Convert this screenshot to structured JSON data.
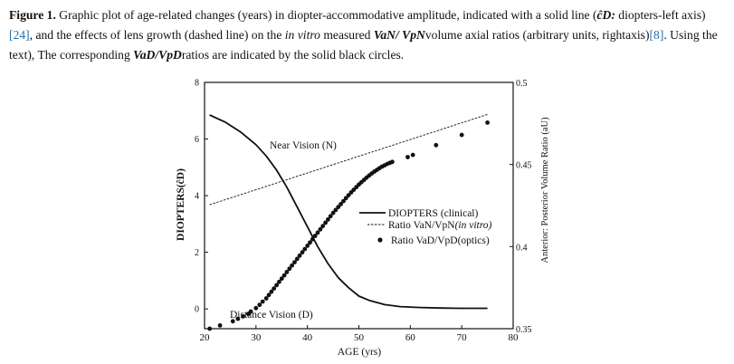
{
  "caption": {
    "label": "Figure 1.",
    "part1": " Graphic plot of age-related changes (years) in diopter-accommodative amplitude, indicated with a solid line (",
    "d_symbol": "ĉD:",
    "part2": " diopters-left axis)",
    "ref1": "[24]",
    "part3": ", and the effects of lens growth (dashed line) on the ",
    "in_vitro": "in vitro",
    "part4": " measured ",
    "ratio1": "VaN/ VpN",
    "part5": "volume axial ratios (arbitrary units, rightaxis)",
    "ref2": "[8]",
    "part6": ". Using the text), The corresponding ",
    "ratio2": "VaD/VpD",
    "part7": "ratios are indicated by the solid black circles."
  },
  "chart_data": {
    "type": "line",
    "xlabel": "AGE (yrs)",
    "ylabel_left": "DIOPTERS(ĉD)",
    "ylabel_right": "Anterior: Posterior Volume Ratio (aU)",
    "xlim": [
      20,
      80
    ],
    "ylim_left": [
      -0.7,
      8
    ],
    "ylim_right": [
      0.35,
      0.5
    ],
    "x_ticks": [
      "20",
      "30",
      "40",
      "50",
      "60",
      "70",
      "80"
    ],
    "y_left_ticks": [
      "0",
      "2",
      "4",
      "6",
      "8"
    ],
    "y_right_ticks": [
      "0.35",
      "0.4",
      "0.45",
      "0.5"
    ],
    "annotations": {
      "near": "Near Vision (N)",
      "distance": "Distance Vision (D)"
    },
    "legend": {
      "position": "center-right",
      "entries": [
        {
          "label": "DIOPTERS (clinical)",
          "style": "solid"
        },
        {
          "label_a": "Ratio VaN/VpN",
          "label_b": "(in vitro)",
          "style": "dashed"
        },
        {
          "label": "Ratio VaD/VpD(optics)",
          "style": "dot"
        }
      ]
    },
    "series": [
      {
        "key": "diopters",
        "axis": "left",
        "style": "solid",
        "x": [
          21,
          24,
          27,
          30,
          32,
          34,
          36,
          38,
          40,
          42,
          44,
          46,
          48,
          50,
          52,
          55,
          58,
          62,
          66,
          70,
          75
        ],
        "y": [
          6.85,
          6.6,
          6.25,
          5.8,
          5.4,
          4.9,
          4.3,
          3.6,
          2.9,
          2.2,
          1.6,
          1.1,
          0.75,
          0.45,
          0.3,
          0.15,
          0.08,
          0.05,
          0.03,
          0.02,
          0.02
        ]
      },
      {
        "key": "ratio_n",
        "axis": "right",
        "style": "dashed",
        "x": [
          21,
          75
        ],
        "y": [
          0.4255,
          0.4805
        ]
      },
      {
        "key": "ratio_d",
        "axis": "right",
        "style": "dot",
        "x": [
          21,
          23,
          25.5,
          26.5,
          27.5,
          28.5,
          29,
          30,
          30.7,
          31.3,
          32,
          32.5,
          33,
          33.5,
          34,
          34.5,
          35,
          35.5,
          36,
          36.5,
          37,
          37.5,
          38,
          38.5,
          39,
          39.5,
          40,
          40.5,
          41,
          41.5,
          42,
          42.5,
          43,
          43.5,
          44,
          44.5,
          45,
          45.5,
          46,
          46.5,
          47,
          47.5,
          48,
          48.5,
          49,
          49.5,
          50,
          50.5,
          51,
          51.5,
          52,
          52.5,
          53,
          53.5,
          54,
          54.5,
          55,
          55.5,
          56,
          56.5,
          59.5,
          60.5,
          65,
          70,
          75
        ],
        "y": [
          0.35,
          0.352,
          0.3545,
          0.356,
          0.3575,
          0.359,
          0.3605,
          0.3625,
          0.3645,
          0.3665,
          0.3685,
          0.3705,
          0.3725,
          0.3745,
          0.3765,
          0.3785,
          0.3805,
          0.3825,
          0.3845,
          0.3865,
          0.3885,
          0.3905,
          0.3925,
          0.3945,
          0.3965,
          0.3985,
          0.4005,
          0.4025,
          0.4045,
          0.4065,
          0.4085,
          0.4105,
          0.4125,
          0.4145,
          0.4165,
          0.4185,
          0.4205,
          0.4223,
          0.4241,
          0.4259,
          0.4277,
          0.4295,
          0.4313,
          0.433,
          0.4346,
          0.4362,
          0.4378,
          0.4392,
          0.4406,
          0.442,
          0.4433,
          0.4445,
          0.4457,
          0.4467,
          0.4477,
          0.4487,
          0.4495,
          0.4503,
          0.451,
          0.4516,
          0.4545,
          0.4558,
          0.4618,
          0.468,
          0.4755
        ]
      }
    ]
  }
}
